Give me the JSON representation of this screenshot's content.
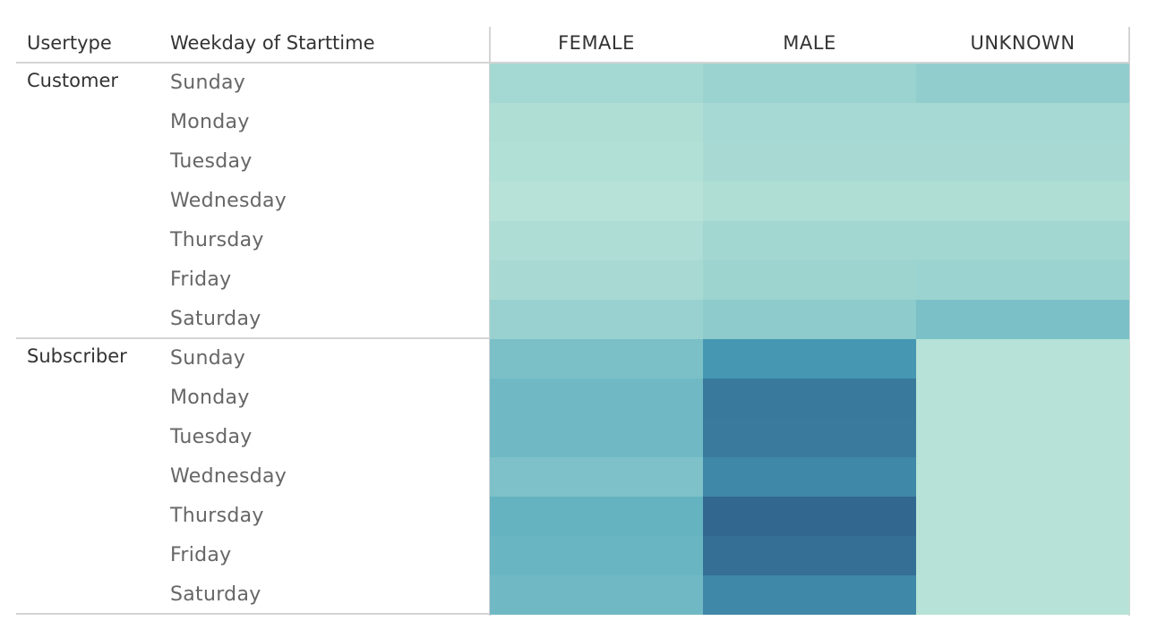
{
  "header": {
    "usertype_label": "Usertype",
    "weekday_label": "Weekday of Starttime"
  },
  "chart_data": {
    "type": "heatmap",
    "columns": [
      "FEMALE",
      "MALE",
      "UNKNOWN"
    ],
    "rows": [
      {
        "usertype": "Customer",
        "weekday": "Sunday"
      },
      {
        "usertype": "Customer",
        "weekday": "Monday"
      },
      {
        "usertype": "Customer",
        "weekday": "Tuesday"
      },
      {
        "usertype": "Customer",
        "weekday": "Wednesday"
      },
      {
        "usertype": "Customer",
        "weekday": "Thursday"
      },
      {
        "usertype": "Customer",
        "weekday": "Friday"
      },
      {
        "usertype": "Customer",
        "weekday": "Saturday"
      },
      {
        "usertype": "Subscriber",
        "weekday": "Sunday"
      },
      {
        "usertype": "Subscriber",
        "weekday": "Monday"
      },
      {
        "usertype": "Subscriber",
        "weekday": "Tuesday"
      },
      {
        "usertype": "Subscriber",
        "weekday": "Wednesday"
      },
      {
        "usertype": "Subscriber",
        "weekday": "Thursday"
      },
      {
        "usertype": "Subscriber",
        "weekday": "Friday"
      },
      {
        "usertype": "Subscriber",
        "weekday": "Saturday"
      }
    ],
    "groups": [
      "Customer",
      "Subscriber"
    ],
    "intensity": [
      [
        0.1,
        0.14,
        0.18
      ],
      [
        0.05,
        0.09,
        0.09
      ],
      [
        0.04,
        0.08,
        0.08
      ],
      [
        0.02,
        0.05,
        0.05
      ],
      [
        0.06,
        0.11,
        0.11
      ],
      [
        0.08,
        0.13,
        0.14
      ],
      [
        0.15,
        0.2,
        0.28
      ],
      [
        0.28,
        0.58,
        0.02
      ],
      [
        0.33,
        0.78,
        0.02
      ],
      [
        0.33,
        0.77,
        0.02
      ],
      [
        0.27,
        0.68,
        0.02
      ],
      [
        0.38,
        0.9,
        0.02
      ],
      [
        0.36,
        0.85,
        0.02
      ],
      [
        0.33,
        0.68,
        0.02
      ]
    ],
    "color_scale": {
      "low": "#bae5d8",
      "mid": "#4aa3ba",
      "high": "#2c5985"
    }
  }
}
